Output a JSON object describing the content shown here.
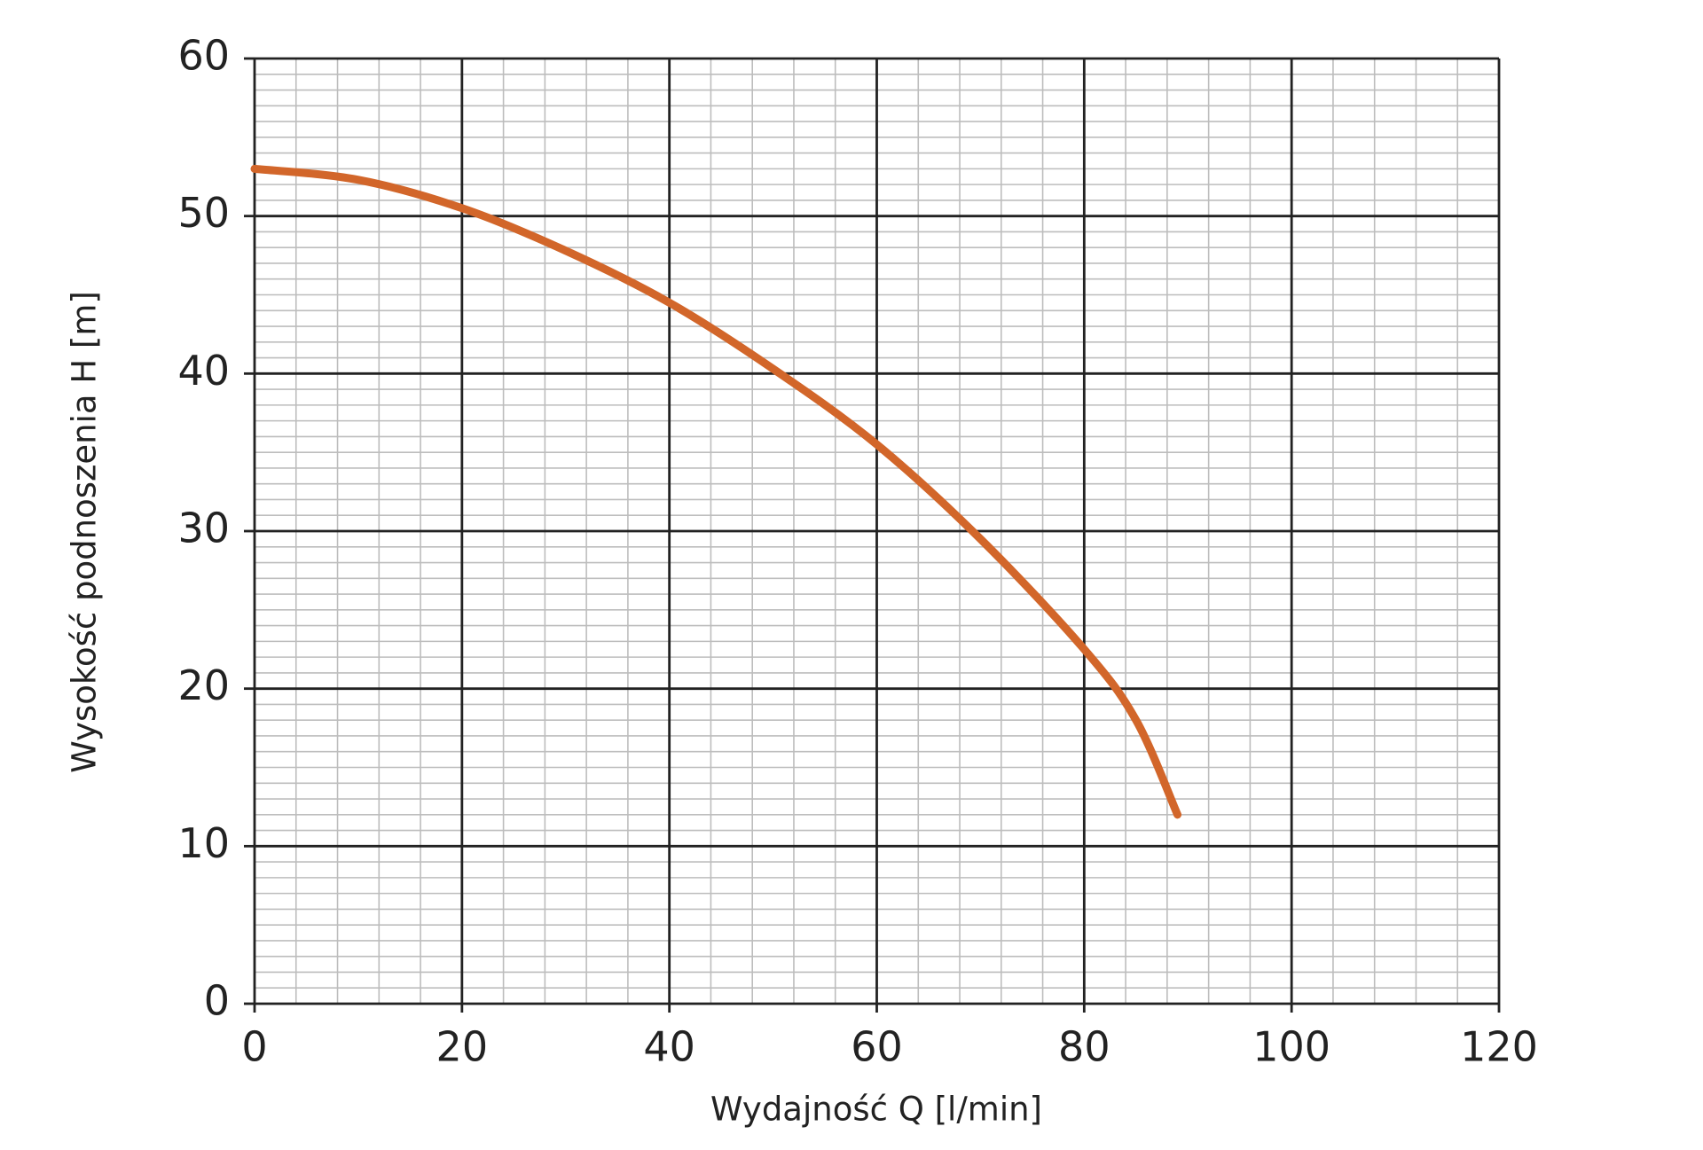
{
  "chart_data": {
    "type": "line",
    "x_label": "Wydajność Q [l/min]",
    "y_label": "Wysokość podnoszenia H [m]",
    "x": [
      0,
      10,
      20,
      30,
      40,
      50,
      60,
      70,
      80,
      85,
      89
    ],
    "series": [
      {
        "color": "#d2662a",
        "values": [
          53,
          52.3,
          50.5,
          47.8,
          44.5,
          40.3,
          35.5,
          29.5,
          22.5,
          18,
          12
        ]
      }
    ],
    "xlim": [
      0,
      120
    ],
    "xticks": [
      0,
      20,
      40,
      60,
      80,
      100,
      120
    ],
    "ylim": [
      0,
      60
    ],
    "yticks": [
      0,
      10,
      20,
      30,
      40,
      50,
      60
    ],
    "grid": true,
    "minor_grid_step": {
      "x": 4,
      "y": 1
    }
  }
}
